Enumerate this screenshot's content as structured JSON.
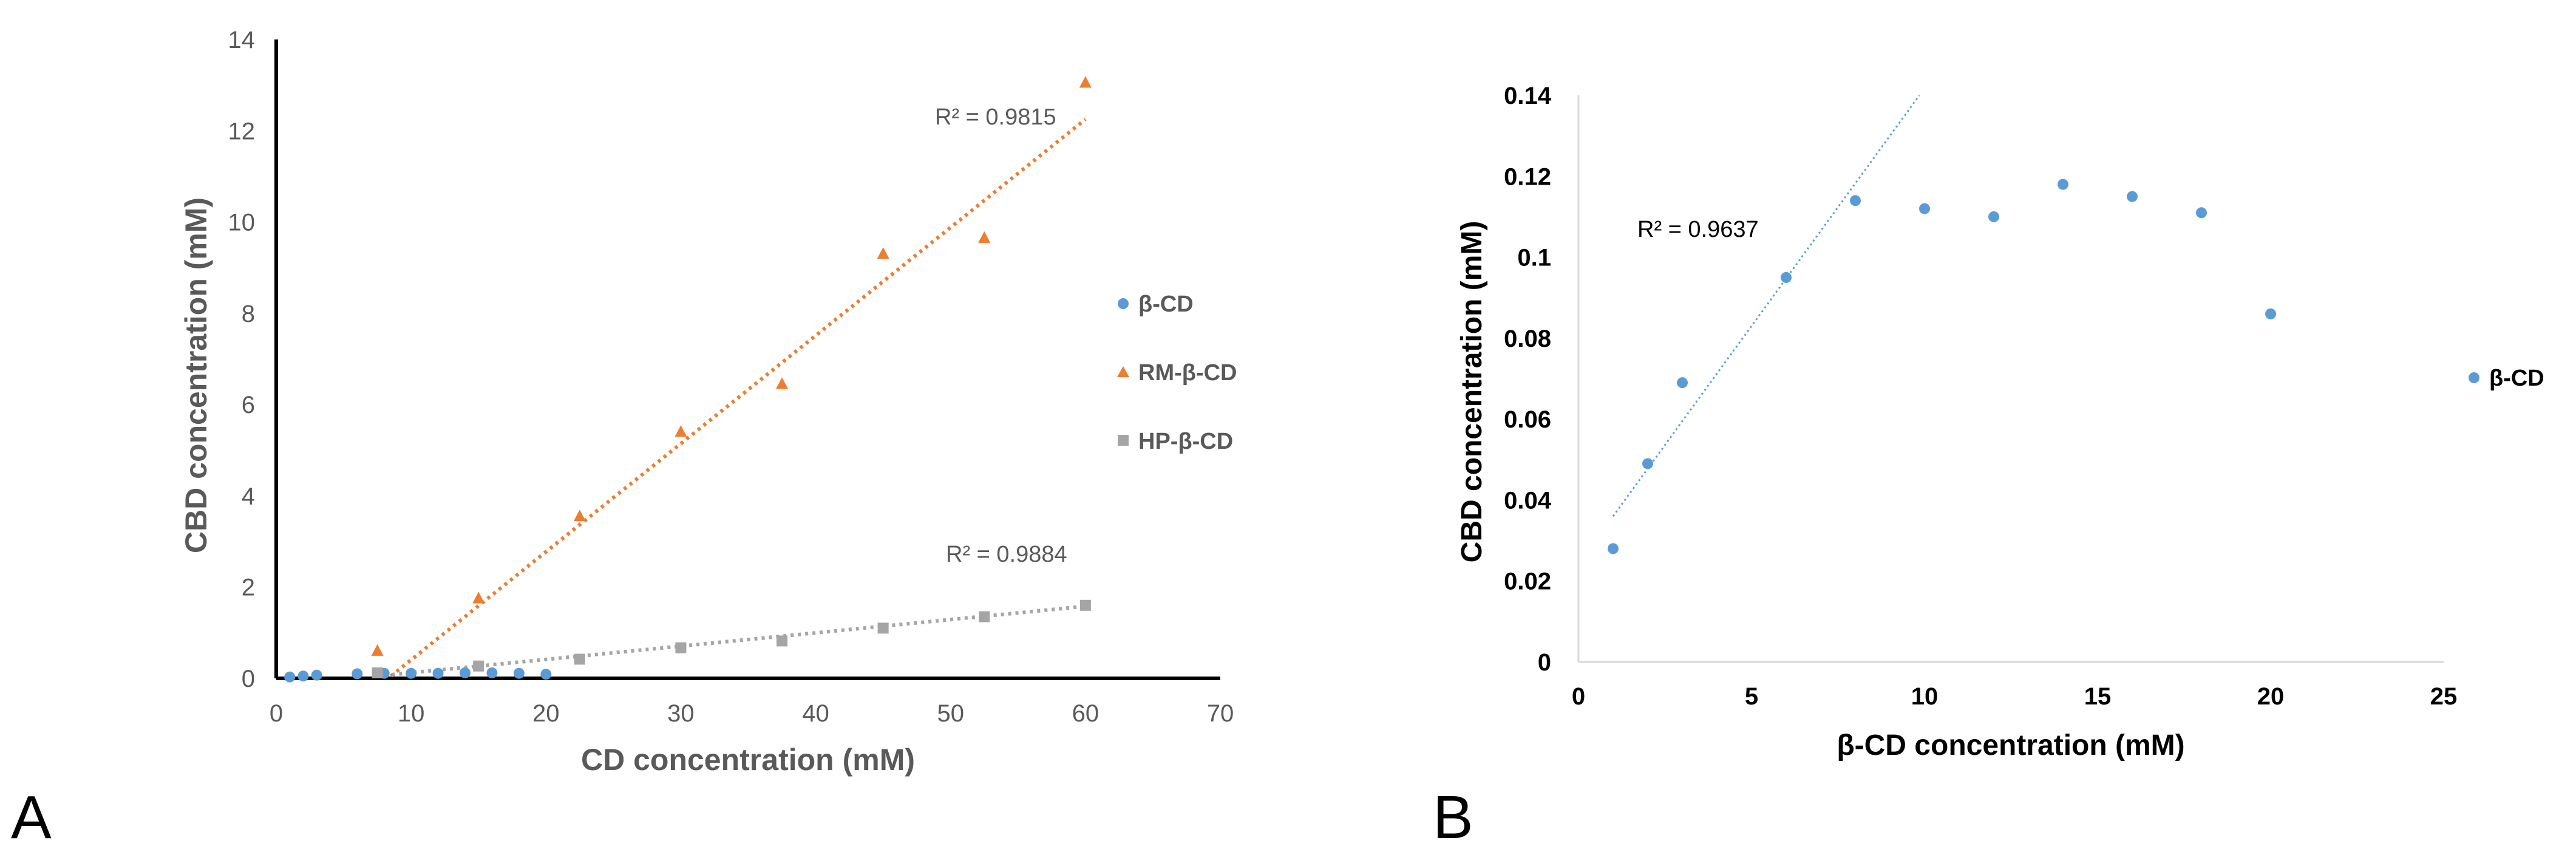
{
  "panels": {
    "a_label": "A",
    "b_label": "B"
  },
  "colors": {
    "beta_cd": "#5B9BD5",
    "rm_beta_cd": "#ED7D31",
    "hp_beta_cd": "#A5A5A5"
  },
  "chart_data": [
    {
      "id": "A",
      "type": "scatter",
      "title": "",
      "xlabel": "CD concentration (mM)",
      "ylabel": "CBD concentration (mM)",
      "xlim": [
        0,
        70
      ],
      "ylim": [
        0,
        14
      ],
      "xticks": [
        0,
        10,
        20,
        30,
        40,
        50,
        60,
        70
      ],
      "yticks": [
        0,
        2,
        4,
        6,
        8,
        10,
        12,
        14
      ],
      "legend_position": "right",
      "series": [
        {
          "name": "β-CD",
          "marker": "circle",
          "color": "#5B9BD5",
          "x": [
            1,
            2,
            3,
            6,
            8,
            10,
            12,
            14,
            16,
            18,
            20
          ],
          "y": [
            0.03,
            0.05,
            0.07,
            0.1,
            0.11,
            0.11,
            0.11,
            0.12,
            0.12,
            0.11,
            0.09
          ]
        },
        {
          "name": "RM-β-CD",
          "marker": "triangle",
          "color": "#ED7D31",
          "x": [
            7.5,
            15,
            22.5,
            30,
            37.5,
            45,
            52.5,
            60
          ],
          "y": [
            0.6,
            1.75,
            3.55,
            5.4,
            6.45,
            9.3,
            9.65,
            13.05
          ],
          "trendline": {
            "x": [
              8.5,
              60
            ],
            "y": [
              0.05,
              12.25
            ],
            "r2": "R² = 0.9815"
          }
        },
        {
          "name": "HP-β-CD",
          "marker": "square",
          "color": "#A5A5A5",
          "x": [
            7.5,
            15,
            22.5,
            30,
            37.5,
            45,
            52.5,
            60
          ],
          "y": [
            0.12,
            0.27,
            0.42,
            0.67,
            0.82,
            1.1,
            1.35,
            1.6
          ],
          "trendline": {
            "x": [
              7.5,
              60
            ],
            "y": [
              0.05,
              1.58
            ],
            "r2": "R² = 0.9884"
          }
        }
      ]
    },
    {
      "id": "B",
      "type": "scatter",
      "title": "",
      "xlabel": "β-CD concentration (mM)",
      "ylabel": "CBD concentration (mM)",
      "xlim": [
        0,
        25
      ],
      "ylim": [
        0,
        0.14
      ],
      "xticks": [
        0,
        5,
        10,
        15,
        20,
        25
      ],
      "yticks": [
        0,
        0.02,
        0.04,
        0.06,
        0.08,
        0.1,
        0.12,
        0.14
      ],
      "ytick_labels": [
        "0",
        "0.02",
        "0.04",
        "0.06",
        "0.08",
        "0.1",
        "0.12",
        "0.14"
      ],
      "legend_position": "right",
      "series": [
        {
          "name": "β-CD",
          "marker": "circle",
          "color": "#5B9BD5",
          "x": [
            1,
            2,
            3,
            6,
            8,
            10,
            12,
            14,
            16,
            18,
            20
          ],
          "y": [
            0.028,
            0.049,
            0.069,
            0.095,
            0.114,
            0.112,
            0.11,
            0.118,
            0.115,
            0.111,
            0.086
          ],
          "trendline": {
            "x": [
              1,
              9.85
            ],
            "y": [
              0.036,
              0.14
            ],
            "r2": "R² = 0.9637"
          }
        }
      ]
    }
  ]
}
